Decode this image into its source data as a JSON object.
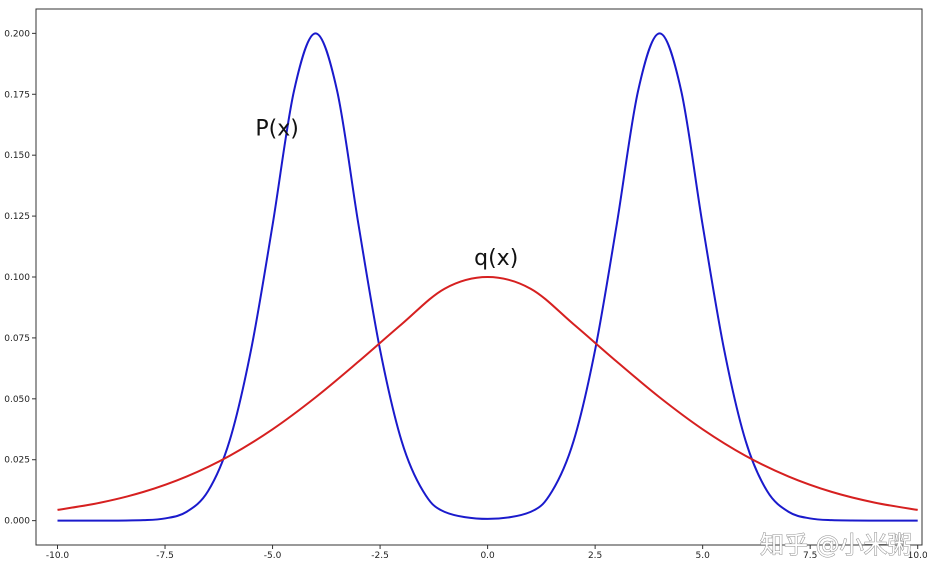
{
  "chart_data": {
    "type": "line",
    "title": "",
    "xlabel": "",
    "ylabel": "",
    "xlim": [
      -10.5,
      10.1
    ],
    "ylim": [
      -0.01,
      0.21
    ],
    "xticks": [
      -10.0,
      -7.5,
      -5.0,
      -2.5,
      0.0,
      2.5,
      5.0,
      7.5,
      10.0
    ],
    "xtick_labels": [
      "-10.0",
      "-7.5",
      "-5.0",
      "-2.5",
      "0.0",
      "2.5",
      "5.0",
      "7.5",
      "10.0"
    ],
    "yticks": [
      0.0,
      0.025,
      0.05,
      0.075,
      0.1,
      0.125,
      0.15,
      0.175,
      0.2
    ],
    "ytick_labels": [
      "0.000",
      "0.025",
      "0.050",
      "0.075",
      "0.100",
      "0.125",
      "0.150",
      "0.175",
      "0.200"
    ],
    "grid": false,
    "series": [
      {
        "color": "#1a1acc",
        "x": [
          -10,
          -9,
          -8,
          -7.5,
          -7,
          -6.5,
          -6,
          -5.5,
          -5,
          -4.5,
          -4,
          -3.5,
          -3,
          -2.5,
          -2,
          -1.5,
          -1,
          0,
          1,
          1.5,
          2,
          2.5,
          3,
          3.5,
          4,
          4.5,
          5,
          5.5,
          6,
          6.5,
          7,
          7.5,
          8,
          9,
          10
        ],
        "y": [
          0.0,
          0.0,
          0.0002,
          0.0009,
          0.0036,
          0.0121,
          0.0327,
          0.0701,
          0.1213,
          0.1765,
          0.2,
          0.1765,
          0.1213,
          0.0701,
          0.0327,
          0.0121,
          0.0036,
          0.0007,
          0.0036,
          0.0121,
          0.0327,
          0.0701,
          0.1213,
          0.1765,
          0.2,
          0.1765,
          0.1213,
          0.0701,
          0.0327,
          0.0121,
          0.0036,
          0.0009,
          0.0002,
          0.0,
          0.0
        ]
      },
      {
        "color": "#d62020",
        "x": [
          -10,
          -9,
          -8,
          -7,
          -6,
          -5,
          -4,
          -3,
          -2,
          -1,
          0,
          1,
          2,
          3,
          4,
          5,
          6,
          7,
          8,
          9,
          10
        ],
        "y": [
          0.0044,
          0.0074,
          0.0118,
          0.0181,
          0.0266,
          0.0375,
          0.0506,
          0.0653,
          0.0806,
          0.0952,
          0.1,
          0.0952,
          0.0806,
          0.0653,
          0.0506,
          0.0375,
          0.0266,
          0.0181,
          0.0118,
          0.0074,
          0.0044
        ]
      }
    ],
    "annotations": [
      {
        "text": "P(x)",
        "x": -5.4,
        "y": 0.158
      },
      {
        "text": "q(x)",
        "x": 0.2,
        "y": 0.105
      }
    ]
  },
  "watermark": {
    "text": "知乎 @小米粥"
  }
}
